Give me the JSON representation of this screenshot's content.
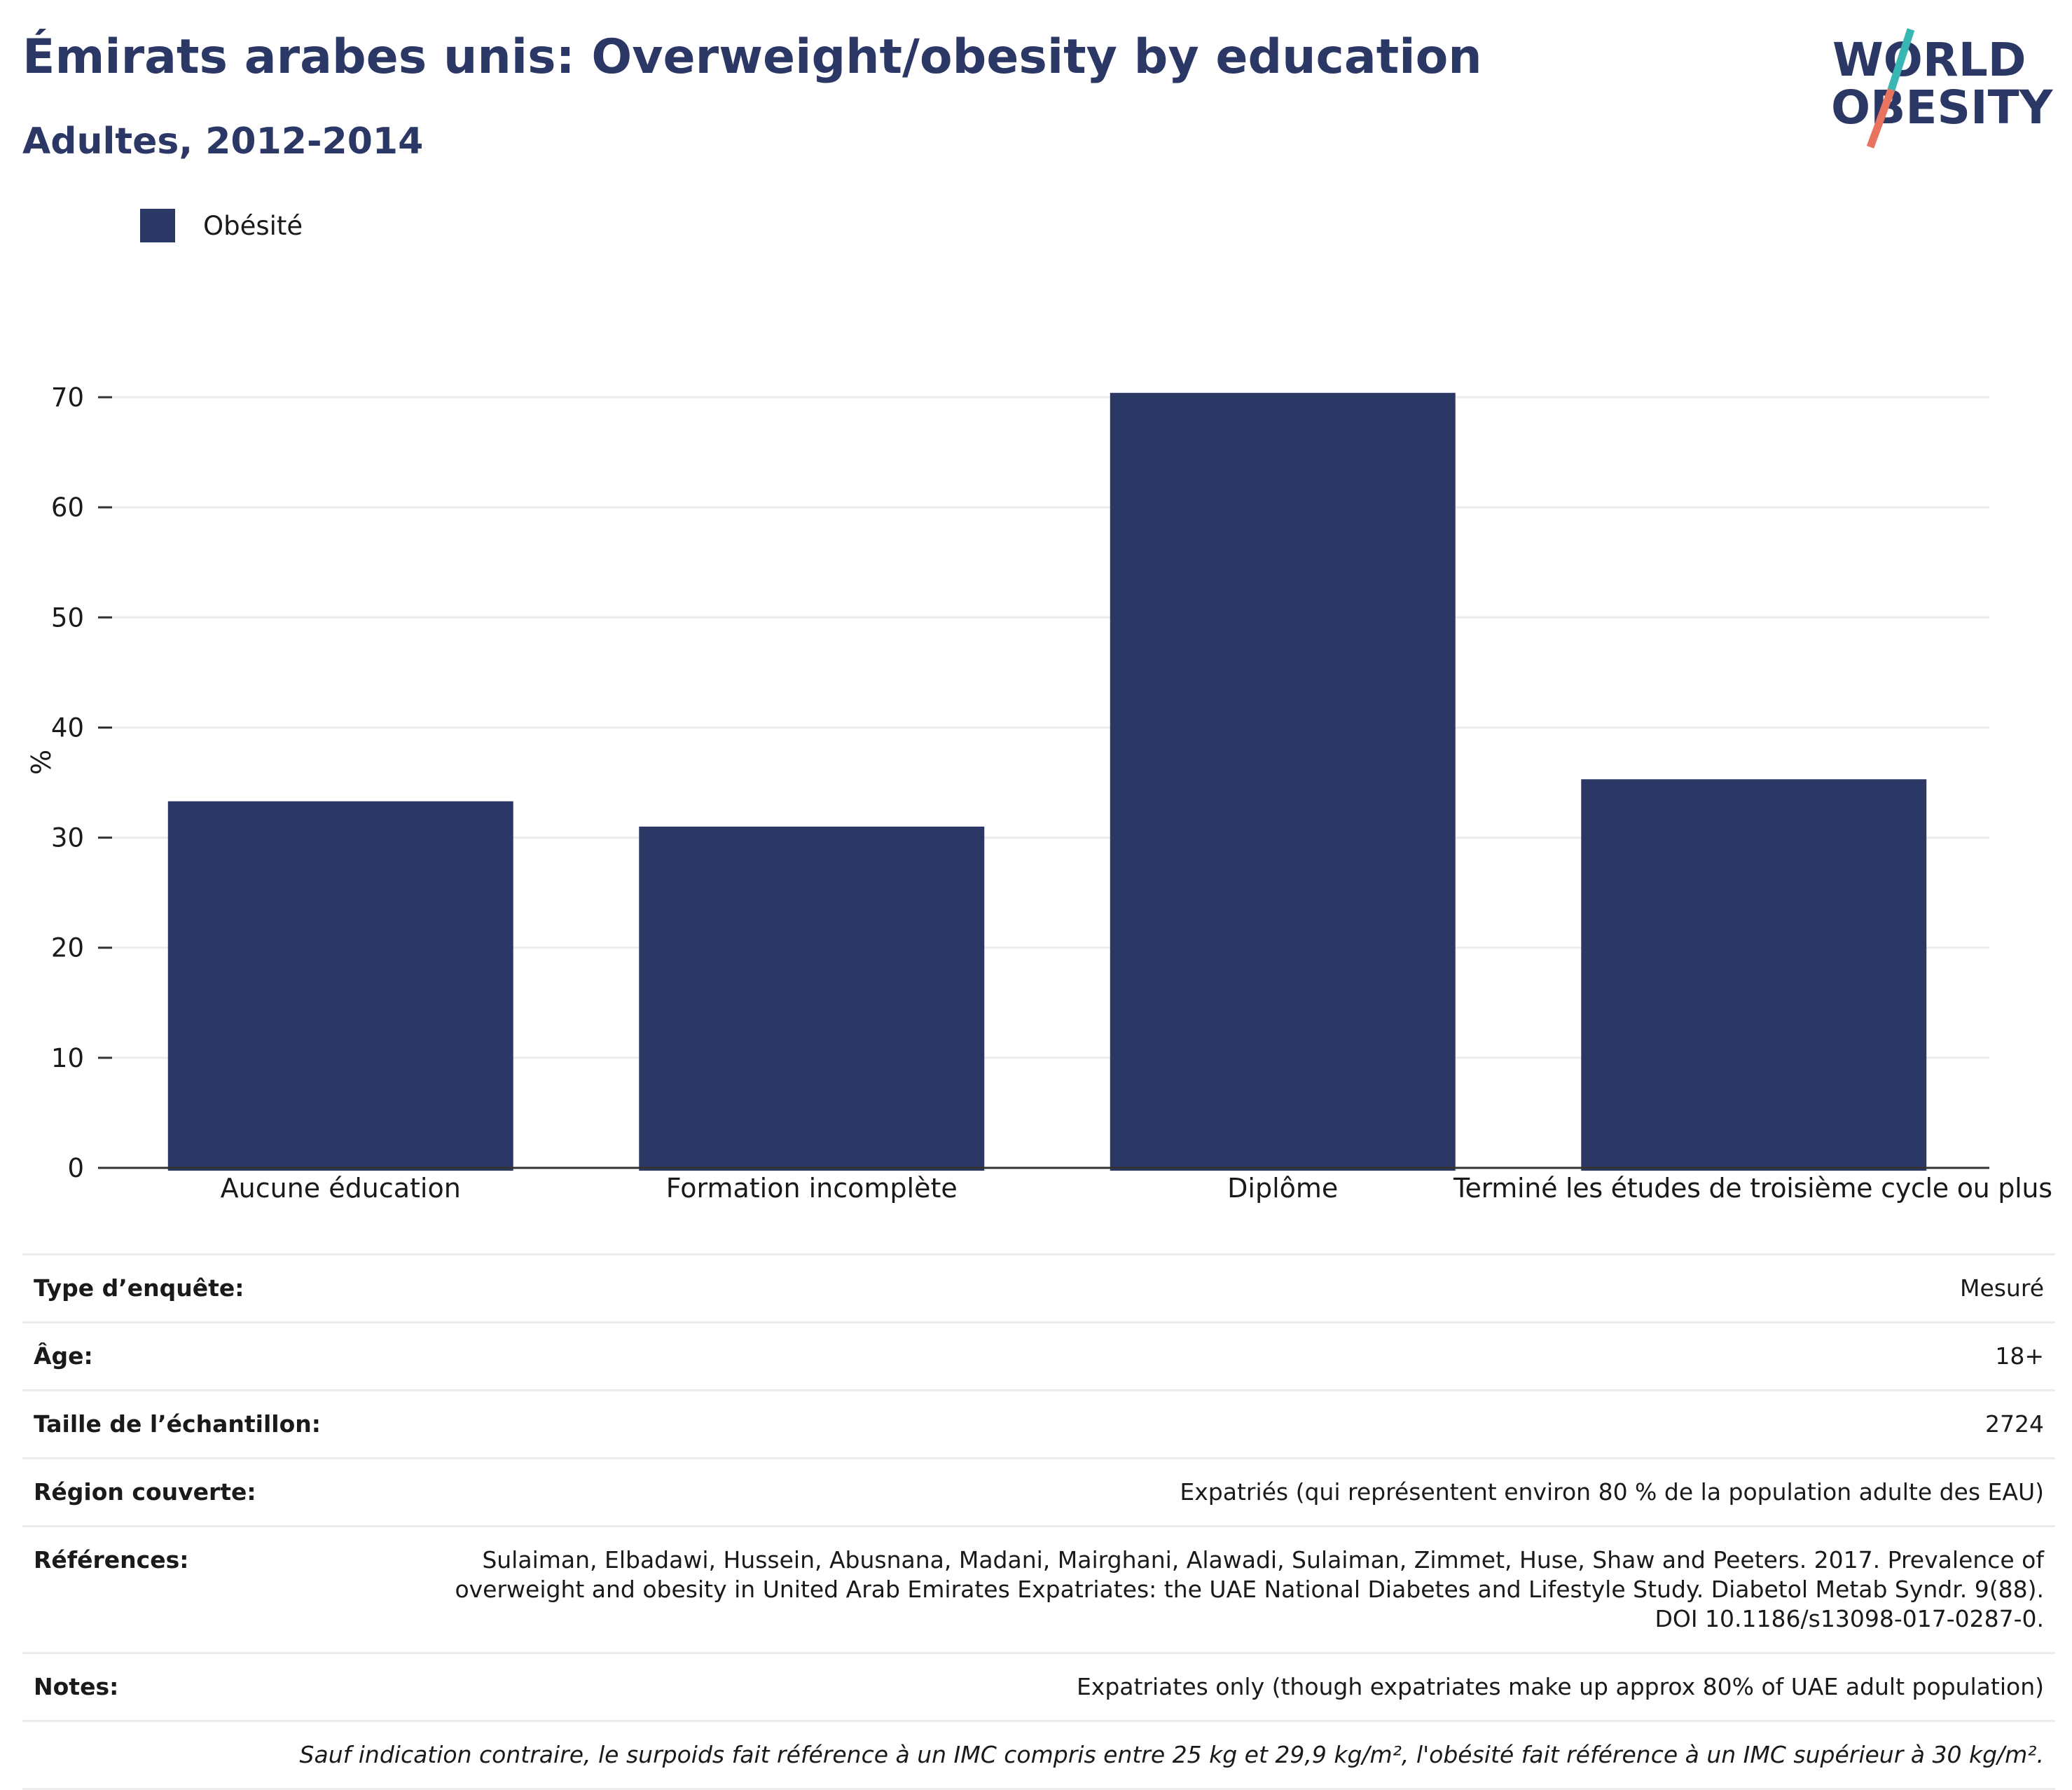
{
  "header": {
    "title": "Émirats arabes unis: Overweight/obesity by education",
    "subtitle": "Adultes, 2012-2014"
  },
  "logo": {
    "line1": "WORLD",
    "line2": "OBESITY",
    "icon": "world-obesity-logo"
  },
  "colors": {
    "bar": "#2b3866",
    "title": "#2b3866",
    "grid": "#ececec",
    "axis": "#333333",
    "logo_teal": "#37b6b3",
    "logo_coral": "#e8735f"
  },
  "chart_data": {
    "type": "bar",
    "categories": [
      "Aucune éducation",
      "Formation incomplète",
      "Diplôme",
      "Terminé les études de troisième cycle ou plus"
    ],
    "series": [
      {
        "name": "Obésité",
        "values": [
          33.3,
          31.0,
          70.4,
          35.3
        ]
      }
    ],
    "ylabel": "%",
    "xlabel": "",
    "ylim": [
      0,
      70
    ],
    "yticks": [
      0,
      10,
      20,
      30,
      40,
      50,
      60,
      70
    ],
    "grid": true,
    "legend_position": "top-left"
  },
  "info": {
    "rows": [
      {
        "label": "Type d’enquête:",
        "value": "Mesuré"
      },
      {
        "label": "Âge:",
        "value": "18+"
      },
      {
        "label": "Taille de l’échantillon:",
        "value": "2724"
      },
      {
        "label": "Région couverte:",
        "value": "Expatriés (qui représentent environ 80 % de la population adulte des EAU)"
      },
      {
        "label": "Références:",
        "value": "Sulaiman, Elbadawi, Hussein, Abusnana, Madani, Mairghani, Alawadi, Sulaiman, Zimmet, Huse, Shaw and Peeters. 2017. Prevalence of overweight and obesity in United Arab Emirates Expatriates: the UAE National Diabetes and Lifestyle Study. Diabetol Metab Syndr. 9(88). DOI 10.1186/s13098-017-0287-0."
      },
      {
        "label": "Notes:",
        "value": "Expatriates only (though expatriates make up approx 80% of UAE adult population)"
      }
    ],
    "footnote": "Sauf indication contraire, le surpoids fait référence à un IMC compris entre 25 kg et 29,9 kg/m², l'obésité fait référence à un IMC supérieur à 30 kg/m²."
  }
}
